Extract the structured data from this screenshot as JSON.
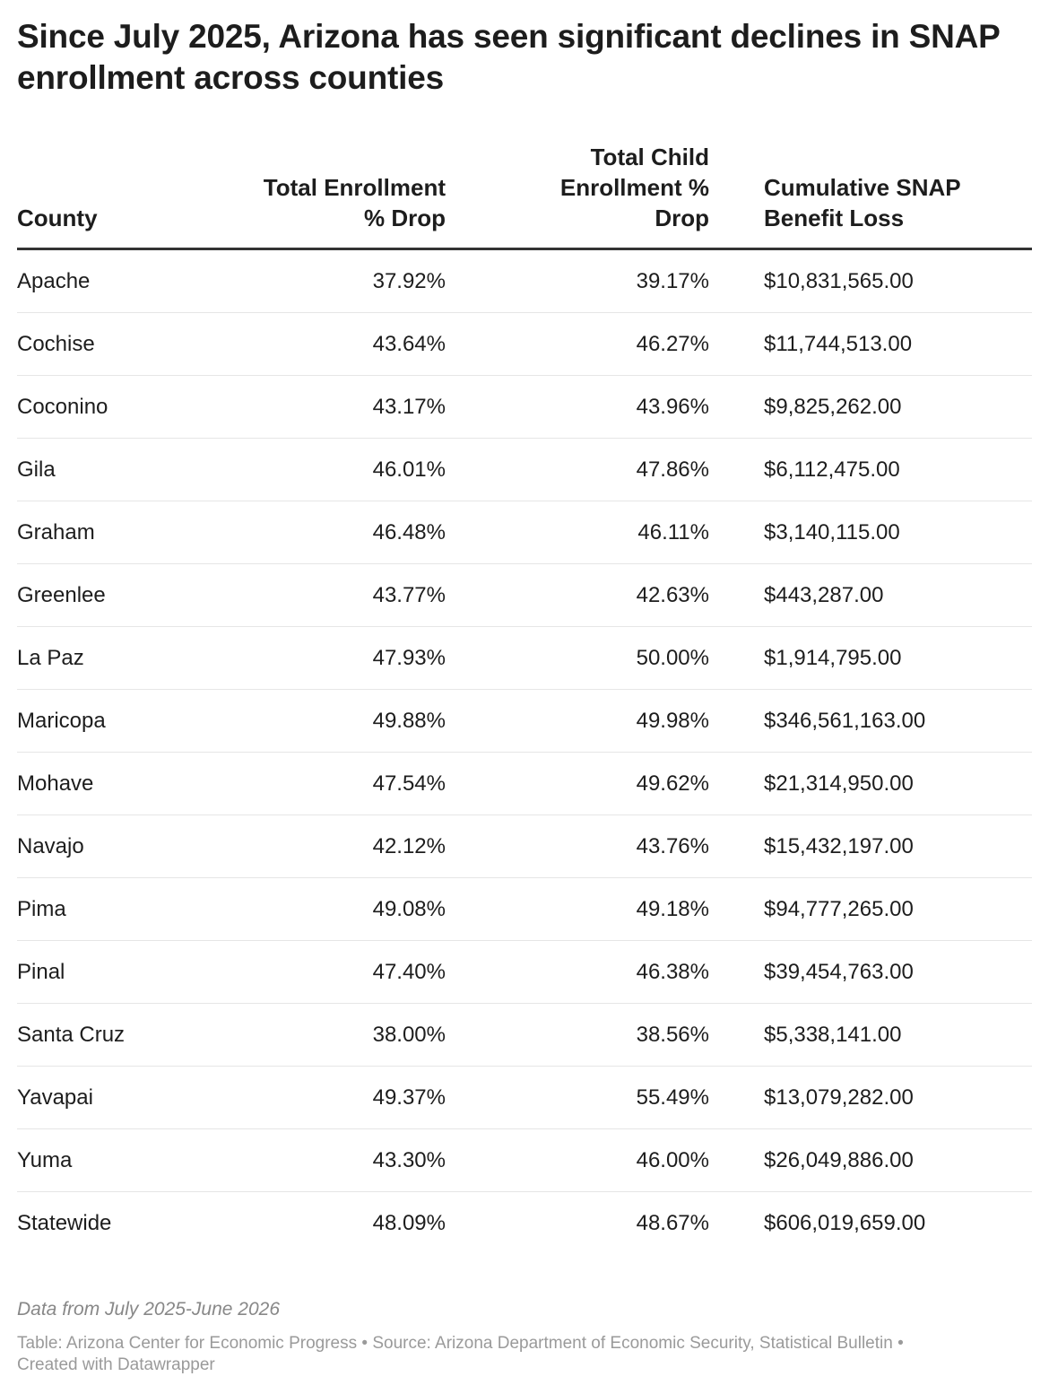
{
  "title": "Since July 2025, Arizona has seen significant declines in SNAP enrollment across counties",
  "chart_data": {
    "type": "table",
    "title": "Since July 2025, Arizona has seen significant declines in SNAP enrollment across counties",
    "columns": [
      "County",
      "Total Enrollment % Drop",
      "Total Child Enrollment % Drop",
      "Cumulative SNAP Benefit Loss"
    ],
    "rows": [
      [
        "Apache",
        "37.92%",
        "39.17%",
        "$10,831,565.00"
      ],
      [
        "Cochise",
        "43.64%",
        "46.27%",
        "$11,744,513.00"
      ],
      [
        "Coconino",
        "43.17%",
        "43.96%",
        "$9,825,262.00"
      ],
      [
        "Gila",
        "46.01%",
        "47.86%",
        "$6,112,475.00"
      ],
      [
        "Graham",
        "46.48%",
        "46.11%",
        "$3,140,115.00"
      ],
      [
        "Greenlee",
        "43.77%",
        "42.63%",
        "$443,287.00"
      ],
      [
        "La Paz",
        "47.93%",
        "50.00%",
        "$1,914,795.00"
      ],
      [
        "Maricopa",
        "49.88%",
        "49.98%",
        "$346,561,163.00"
      ],
      [
        "Mohave",
        "47.54%",
        "49.62%",
        "$21,314,950.00"
      ],
      [
        "Navajo",
        "42.12%",
        "43.76%",
        "$15,432,197.00"
      ],
      [
        "Pima",
        "49.08%",
        "49.18%",
        "$94,777,265.00"
      ],
      [
        "Pinal",
        "47.40%",
        "46.38%",
        "$39,454,763.00"
      ],
      [
        "Santa Cruz",
        "38.00%",
        "38.56%",
        "$5,338,141.00"
      ],
      [
        "Yavapai",
        "49.37%",
        "55.49%",
        "$13,079,282.00"
      ],
      [
        "Yuma",
        "43.30%",
        "46.00%",
        "$26,049,886.00"
      ],
      [
        "Statewide",
        "48.09%",
        "48.67%",
        "$606,019,659.00"
      ]
    ]
  },
  "header": {
    "county": "County",
    "enrollment_line1": "Total Enrollment",
    "enrollment_line2": "% Drop",
    "child_line1": "Total Child",
    "child_line2": "Enrollment %",
    "child_line3": "Drop",
    "benefit_line1": "Cumulative SNAP",
    "benefit_line2": "Benefit Loss"
  },
  "notes": "Data from July 2025-June 2026",
  "footer": {
    "table_credit": "Table: Arizona Center for Economic Progress",
    "separator": " • ",
    "source": "Source: Arizona Department of Economic Security, Statistical Bulletin",
    "created": "Created with Datawrapper"
  },
  "colors": {
    "text": "#1d1d1d",
    "header_rule": "#333333",
    "row_rule": "#e6e6e6",
    "notes": "#888888",
    "footer": "#9a9a9a"
  }
}
